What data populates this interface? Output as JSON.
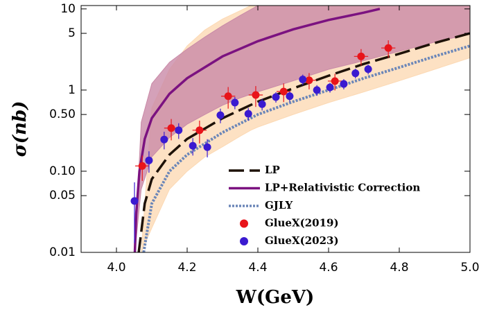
{
  "chart_data": {
    "type": "scatter",
    "xlabel": "W(GeV)",
    "ylabel": "σ(nb)",
    "ylog": true,
    "xlim": [
      3.9,
      5.0
    ],
    "ylim": [
      0.01,
      11
    ],
    "xticks": [
      {
        "value": 4,
        "label": "4.0"
      },
      4.2,
      4.4,
      4.6,
      4.8,
      {
        "value": 5,
        "label": "5.0"
      }
    ],
    "yticks": [
      0.01,
      0.05,
      {
        "value": 0.1,
        "label": "0.10"
      },
      {
        "value": 0.5,
        "label": "0.50"
      },
      1,
      5,
      10
    ],
    "bands": [
      {
        "color": "#fcd9b4",
        "x": [
          4.07,
          4.1,
          4.15,
          4.2,
          4.25,
          4.3,
          4.35,
          4.38,
          4.4,
          4.5,
          4.6,
          4.7,
          4.8,
          4.9,
          5.0
        ],
        "upper": [
          0.01,
          0.6,
          1.8,
          3.5,
          5.5,
          7.5,
          9.5,
          11,
          11,
          11,
          11,
          11,
          11,
          11,
          11
        ],
        "lower": [
          0.01,
          0.02,
          0.06,
          0.1,
          0.15,
          0.2,
          0.27,
          0.32,
          0.35,
          0.5,
          0.7,
          0.95,
          1.3,
          1.8,
          2.5
        ]
      },
      {
        "color": "#c98aa8",
        "x": [
          4.052,
          4.07,
          4.1,
          4.15,
          4.2,
          4.25,
          4.3,
          4.35,
          4.4,
          4.5,
          4.6,
          4.7,
          4.8,
          4.9,
          5.0
        ],
        "upper": [
          0.01,
          0.4,
          1.2,
          2.2,
          3.2,
          4.5,
          6.2,
          8.3,
          11,
          11,
          11,
          11,
          11,
          11,
          11
        ],
        "lower": [
          0.01,
          0.06,
          0.15,
          0.26,
          0.38,
          0.5,
          0.65,
          0.8,
          0.95,
          1.3,
          1.8,
          2.3,
          3.0,
          3.9,
          4.9
        ]
      }
    ],
    "series": [
      {
        "name": "LP",
        "type": "line",
        "style": "dashed",
        "color": "#1e1208",
        "x": [
          4.063,
          4.08,
          4.1,
          4.15,
          4.2,
          4.3,
          4.4,
          4.5,
          4.6,
          4.7,
          4.8,
          4.9,
          5.0
        ],
        "values": [
          0.01,
          0.04,
          0.08,
          0.16,
          0.25,
          0.45,
          0.72,
          1.05,
          1.5,
          2.1,
          2.8,
          3.8,
          5.0
        ]
      },
      {
        "name": "LP+Relativistic Correction",
        "type": "line",
        "style": "solid",
        "color": "#7b1280",
        "x": [
          4.052,
          4.056,
          4.065,
          4.08,
          4.1,
          4.15,
          4.2,
          4.3,
          4.4,
          4.5,
          4.6,
          4.7,
          4.745
        ],
        "values": [
          0.01,
          0.03,
          0.1,
          0.25,
          0.45,
          0.9,
          1.4,
          2.6,
          4.0,
          5.6,
          7.3,
          9.0,
          10
        ]
      },
      {
        "name": "GJLY",
        "type": "line",
        "style": "dotted",
        "color": "#6b86b8",
        "x": [
          4.077,
          4.1,
          4.15,
          4.2,
          4.3,
          4.4,
          4.5,
          4.6,
          4.7,
          4.8,
          4.9,
          5.0
        ],
        "values": [
          0.01,
          0.04,
          0.1,
          0.16,
          0.3,
          0.5,
          0.72,
          1.0,
          1.4,
          1.9,
          2.6,
          3.5
        ]
      },
      {
        "name": "GlueX(2019)",
        "type": "points",
        "color": "#e8141a",
        "x": [
          4.073,
          4.155,
          4.235,
          4.316,
          4.394,
          4.473,
          4.545,
          4.618,
          4.692,
          4.769
        ],
        "xerr": [
          0.02,
          0.02,
          0.02,
          0.02,
          0.02,
          0.02,
          0.02,
          0.02,
          0.02,
          0.02
        ],
        "values": [
          0.116,
          0.34,
          0.32,
          0.84,
          0.87,
          0.96,
          1.32,
          1.29,
          2.6,
          3.3
        ],
        "yerr": [
          0.04,
          0.1,
          0.1,
          0.25,
          0.25,
          0.25,
          0.3,
          0.3,
          0.6,
          0.8
        ]
      },
      {
        "name": "GlueX(2023)",
        "type": "points",
        "color": "#3a1ad0",
        "x": [
          4.051,
          4.092,
          4.135,
          4.176,
          4.216,
          4.257,
          4.294,
          4.335,
          4.373,
          4.412,
          4.451,
          4.49,
          4.527,
          4.567,
          4.604,
          4.643,
          4.676,
          4.712
        ],
        "xerr": [
          0.01,
          0.01,
          0.01,
          0.01,
          0.01,
          0.01,
          0.01,
          0.01,
          0.01,
          0.01,
          0.01,
          0.01,
          0.01,
          0.01,
          0.01,
          0.01,
          0.01,
          0.01
        ],
        "values": [
          0.043,
          0.136,
          0.246,
          0.32,
          0.206,
          0.198,
          0.49,
          0.7,
          0.51,
          0.67,
          0.82,
          0.84,
          1.35,
          1.0,
          1.08,
          1.19,
          1.61,
          1.81
        ],
        "yerr": [
          0.03,
          0.04,
          0.06,
          0.07,
          0.05,
          0.05,
          0.1,
          0.12,
          0.09,
          0.11,
          0.12,
          0.12,
          0.2,
          0.15,
          0.15,
          0.17,
          0.22,
          0.25
        ]
      }
    ]
  }
}
